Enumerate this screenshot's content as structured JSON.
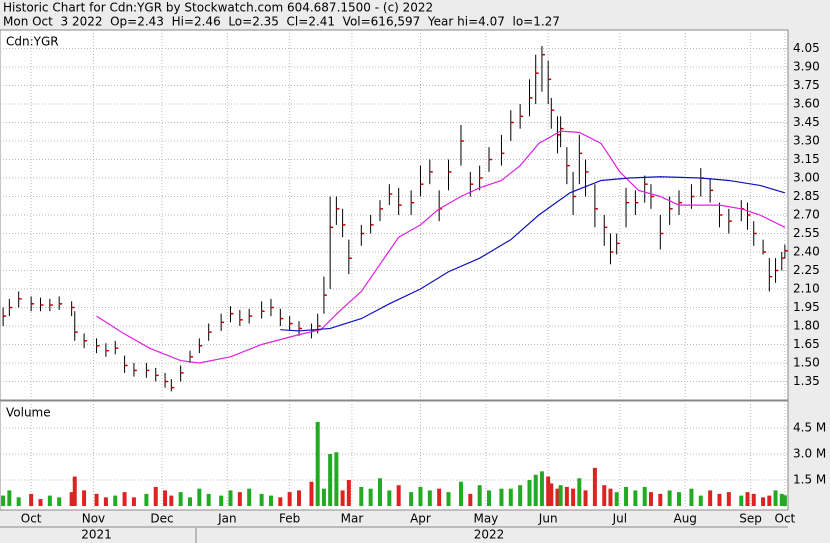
{
  "chart_data": [
    {
      "type": "ohlc",
      "title": "Historic Chart for Cdn:YGR by Stockwatch.com 604.687.1500 - (c) 2022",
      "subtitle": "Mon Oct  3 2022  Op=2.43  Hi=2.46  Lo=2.35  Cl=2.41  Vol=616,597  Year hi=4.07  lo=1.27",
      "label": "Cdn:YGR",
      "x": [
        0,
        2,
        5,
        9,
        12,
        15,
        18,
        22,
        23,
        26,
        30,
        33,
        36,
        39,
        42,
        46,
        49,
        52,
        54,
        57,
        60,
        63,
        66,
        70,
        73,
        76,
        79,
        83,
        86,
        89,
        92,
        95,
        99,
        101,
        103,
        105,
        107,
        109,
        111,
        115,
        118,
        121,
        124,
        127,
        131,
        134,
        137,
        140,
        143,
        147,
        150,
        153,
        156,
        160,
        163,
        166,
        169,
        171,
        173,
        175,
        176,
        178,
        179,
        181,
        183,
        185,
        187,
        190,
        193,
        195,
        197,
        200,
        203,
        206,
        208,
        211,
        214,
        217,
        221,
        224,
        227,
        230,
        233,
        237,
        239,
        241,
        244,
        246,
        248,
        250,
        251
      ],
      "high": [
        1.95,
        2.02,
        2.08,
        2.04,
        2.03,
        2.02,
        2.04,
        2.0,
        1.92,
        1.74,
        1.7,
        1.66,
        1.68,
        1.56,
        1.5,
        1.5,
        1.46,
        1.42,
        1.37,
        1.48,
        1.6,
        1.7,
        1.82,
        1.9,
        1.96,
        1.93,
        1.94,
        2.0,
        2.02,
        1.94,
        1.88,
        1.84,
        1.82,
        1.9,
        2.2,
        2.85,
        2.85,
        2.75,
        2.5,
        2.62,
        2.7,
        2.82,
        2.95,
        2.92,
        2.9,
        3.1,
        3.15,
        2.9,
        3.15,
        3.43,
        3.05,
        3.1,
        3.25,
        3.35,
        3.55,
        3.6,
        3.8,
        4.0,
        4.07,
        3.95,
        3.65,
        3.5,
        3.5,
        3.25,
        3.05,
        3.35,
        3.15,
        2.95,
        2.7,
        2.55,
        2.55,
        2.92,
        2.9,
        3.02,
        2.95,
        2.7,
        2.85,
        2.9,
        2.95,
        3.08,
        3.0,
        2.8,
        2.75,
        2.82,
        2.8,
        2.65,
        2.5,
        2.35,
        2.35,
        2.4,
        2.46
      ],
      "low": [
        1.8,
        1.88,
        1.95,
        1.92,
        1.92,
        1.92,
        1.93,
        1.88,
        1.68,
        1.62,
        1.58,
        1.55,
        1.57,
        1.42,
        1.39,
        1.38,
        1.35,
        1.3,
        1.27,
        1.35,
        1.5,
        1.58,
        1.68,
        1.76,
        1.83,
        1.8,
        1.82,
        1.86,
        1.88,
        1.8,
        1.76,
        1.72,
        1.7,
        1.74,
        1.9,
        2.1,
        2.62,
        2.52,
        2.22,
        2.45,
        2.55,
        2.65,
        2.78,
        2.7,
        2.7,
        2.85,
        2.95,
        2.65,
        2.9,
        3.1,
        2.85,
        2.9,
        3.05,
        3.1,
        3.3,
        3.4,
        3.5,
        3.6,
        3.7,
        3.6,
        3.4,
        3.2,
        3.25,
        2.95,
        2.7,
        2.95,
        2.85,
        2.6,
        2.45,
        2.3,
        2.38,
        2.6,
        2.7,
        2.8,
        2.75,
        2.42,
        2.62,
        2.7,
        2.75,
        2.85,
        2.8,
        2.6,
        2.55,
        2.65,
        2.58,
        2.45,
        2.38,
        2.08,
        2.15,
        2.25,
        2.35
      ],
      "close": [
        1.88,
        1.95,
        2.02,
        1.98,
        1.97,
        1.97,
        1.98,
        1.95,
        1.75,
        1.68,
        1.64,
        1.6,
        1.62,
        1.48,
        1.44,
        1.44,
        1.4,
        1.35,
        1.3,
        1.42,
        1.55,
        1.64,
        1.75,
        1.83,
        1.9,
        1.85,
        1.88,
        1.92,
        1.95,
        1.86,
        1.82,
        1.78,
        1.76,
        1.8,
        2.05,
        2.6,
        2.75,
        2.62,
        2.35,
        2.55,
        2.62,
        2.75,
        2.87,
        2.78,
        2.8,
        2.95,
        3.05,
        2.75,
        3.05,
        3.3,
        2.95,
        3.0,
        3.15,
        3.2,
        3.45,
        3.5,
        3.65,
        3.85,
        4.0,
        3.8,
        3.55,
        3.35,
        3.4,
        3.1,
        2.85,
        3.2,
        3.05,
        2.75,
        2.6,
        2.4,
        2.47,
        2.8,
        2.8,
        2.95,
        2.85,
        2.55,
        2.75,
        2.8,
        2.85,
        3.0,
        2.9,
        2.7,
        2.65,
        2.75,
        2.7,
        2.55,
        2.4,
        2.2,
        2.25,
        2.35,
        2.41
      ],
      "color": "#000000",
      "close_color": "#cc0000",
      "lines": [
        {
          "color": "#e020e0",
          "x": [
            30,
            38,
            47,
            57,
            63,
            73,
            83,
            95,
            102,
            108,
            115,
            121,
            127,
            134,
            140,
            147,
            153,
            160,
            166,
            172,
            179,
            185,
            192,
            198,
            204,
            211,
            217,
            224,
            230,
            237,
            243,
            251
          ],
          "values": [
            1.88,
            1.75,
            1.62,
            1.52,
            1.5,
            1.55,
            1.65,
            1.73,
            1.77,
            1.92,
            2.08,
            2.3,
            2.52,
            2.62,
            2.75,
            2.85,
            2.92,
            2.98,
            3.1,
            3.28,
            3.38,
            3.37,
            3.28,
            3.05,
            2.9,
            2.85,
            2.78,
            2.78,
            2.78,
            2.75,
            2.7,
            2.6
          ]
        },
        {
          "color": "#1010c0",
          "x": [
            89,
            95,
            105,
            115,
            124,
            134,
            143,
            153,
            163,
            172,
            182,
            192,
            201,
            211,
            224,
            233,
            243,
            251
          ],
          "values": [
            1.77,
            1.76,
            1.78,
            1.86,
            1.98,
            2.1,
            2.24,
            2.35,
            2.5,
            2.7,
            2.88,
            2.98,
            3.0,
            3.01,
            3.0,
            2.98,
            2.94,
            2.88
          ]
        }
      ],
      "xlim": [
        -1,
        252
      ],
      "xticks": [
        {
          "value": 9,
          "label": "Oct"
        },
        {
          "value": 29,
          "label": "Nov"
        },
        {
          "value": 51,
          "label": "Dec"
        },
        {
          "value": 72,
          "label": "Jan"
        },
        {
          "value": 92,
          "label": "Feb"
        },
        {
          "value": 112,
          "label": "Mar"
        },
        {
          "value": 134,
          "label": "Apr"
        },
        {
          "value": 155,
          "label": "May"
        },
        {
          "value": 175,
          "label": "Jun"
        },
        {
          "value": 198,
          "label": "Jul"
        },
        {
          "value": 219,
          "label": "Aug"
        },
        {
          "value": 240,
          "label": "Sep"
        },
        {
          "value": 251,
          "label": "Oct"
        }
      ],
      "year_ticks": [
        {
          "value": 30,
          "label": "2021"
        },
        {
          "value": 156,
          "label": "2022"
        }
      ],
      "ylim": [
        1.2,
        4.2
      ],
      "yticks": [
        1.35,
        {
          "value": 1.5,
          "label": "1.50"
        },
        1.65,
        {
          "value": 1.8,
          "label": "1.80"
        },
        1.95,
        {
          "value": 2.1,
          "label": "2.10"
        },
        2.25,
        {
          "value": 2.4,
          "label": "2.40"
        },
        2.55,
        {
          "value": 2.7,
          "label": "2.70"
        },
        2.85,
        {
          "value": 3.0,
          "label": "3.00"
        },
        3.15,
        {
          "value": 3.3,
          "label": "3.30"
        },
        3.45,
        {
          "value": 3.6,
          "label": "3.60"
        },
        3.75,
        {
          "value": 3.9,
          "label": "3.90"
        },
        4.05
      ],
      "grid": true
    },
    {
      "type": "bar",
      "title": "Volume",
      "values": [
        0.6,
        0.9,
        0.5,
        0.7,
        0.4,
        0.6,
        0.5,
        0.8,
        1.7,
        0.9,
        0.7,
        0.5,
        0.6,
        0.8,
        0.5,
        0.7,
        1.1,
        0.9,
        0.6,
        0.8,
        0.5,
        1.0,
        0.7,
        0.6,
        0.9,
        0.8,
        1.0,
        0.7,
        0.6,
        0.5,
        0.8,
        0.9,
        1.4,
        4.85,
        1.0,
        3.0,
        3.1,
        0.9,
        1.5,
        1.1,
        1.0,
        1.6,
        0.9,
        1.2,
        0.8,
        1.1,
        0.9,
        1.0,
        0.8,
        1.4,
        0.7,
        1.2,
        0.9,
        1.0,
        1.0,
        1.2,
        1.5,
        1.8,
        2.0,
        1.7,
        1.3,
        1.0,
        1.2,
        1.1,
        1.0,
        1.6,
        0.9,
        2.2,
        1.2,
        1.0,
        0.8,
        1.1,
        0.9,
        1.1,
        0.8,
        0.7,
        0.9,
        0.8,
        1.0,
        0.6,
        0.9,
        0.7,
        0.8,
        0.6,
        0.8,
        0.7,
        0.5,
        0.6,
        0.9,
        0.7,
        0.62
      ],
      "up_color": "#22aa22",
      "down_color": "#dd2222",
      "ylim": [
        0,
        6
      ],
      "yticks": [
        {
          "value": 1.5,
          "label": "1.5 M"
        },
        {
          "value": 3.0,
          "label": "3.0 M"
        },
        {
          "value": 4.5,
          "label": "4.5 M"
        }
      ],
      "grid": true
    }
  ]
}
